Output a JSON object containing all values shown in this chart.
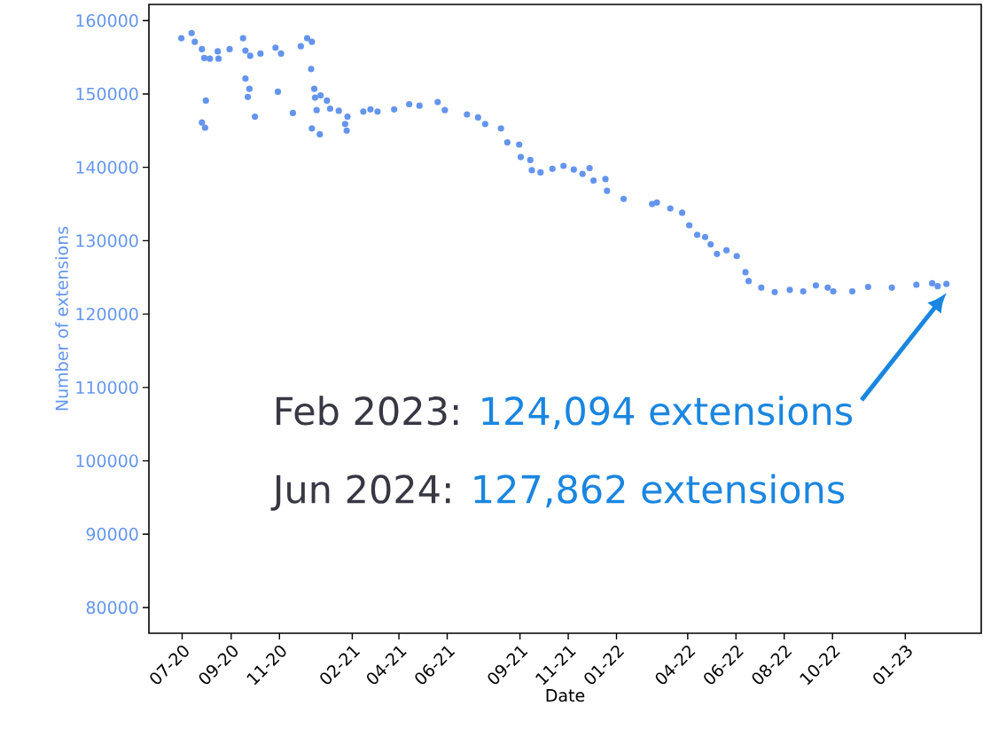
{
  "chart_data": {
    "type": "scatter",
    "xlabel": "Date",
    "ylabel": "Number of extensions",
    "x": [
      "2020-07-14",
      "2020-07-27",
      "2020-07-31",
      "2020-08-09",
      "2020-08-12",
      "2020-08-19",
      "2020-08-29",
      "2020-08-30",
      "2020-09-13",
      "2020-09-30",
      "2020-10-03",
      "2020-10-09",
      "2020-10-22",
      "2020-11-10",
      "2020-11-17",
      "2020-12-12",
      "2020-12-20",
      "2020-12-26",
      "2020-08-14",
      "2020-08-09",
      "2020-08-13",
      "2020-10-03",
      "2020-10-08",
      "2020-10-06",
      "2020-10-15",
      "2020-11-13",
      "2020-12-02",
      "2020-12-25",
      "2020-12-29",
      "2021-01-01",
      "2020-12-26",
      "2021-01-05",
      "2021-02-06",
      "2021-02-08",
      "2020-12-30",
      "2021-01-06",
      "2021-01-14",
      "2021-01-18",
      "2021-01-29",
      "2021-02-09",
      "2021-03-01",
      "2021-03-10",
      "2021-03-19",
      "2021-04-09",
      "2021-04-28",
      "2021-05-11",
      "2021-06-03",
      "2021-06-12",
      "2021-07-10",
      "2021-07-24",
      "2021-08-02",
      "2021-08-22",
      "2021-08-30",
      "2021-09-14",
      "2021-09-16",
      "2021-09-28",
      "2021-09-30",
      "2021-10-11",
      "2021-10-26",
      "2021-11-09",
      "2021-11-22",
      "2021-12-03",
      "2021-12-12",
      "2021-12-17",
      "2022-01-01",
      "2022-01-03",
      "2022-01-24",
      "2022-03-01",
      "2022-03-07",
      "2022-03-24",
      "2022-04-08",
      "2022-04-17",
      "2022-04-27",
      "2022-05-07",
      "2022-05-14",
      "2022-05-22",
      "2022-06-03",
      "2022-06-16",
      "2022-06-27",
      "2022-07-01",
      "2022-07-17",
      "2022-08-03",
      "2022-08-22",
      "2022-09-08",
      "2022-09-24",
      "2022-10-09",
      "2022-10-16",
      "2022-11-09",
      "2022-11-29",
      "2022-12-29",
      "2023-01-29",
      "2023-02-18",
      "2023-02-25",
      "2023-03-08"
    ],
    "values": [
      157600,
      158300,
      157100,
      156100,
      154900,
      154800,
      155800,
      154800,
      156100,
      157600,
      155900,
      155200,
      155500,
      156300,
      155500,
      156500,
      157600,
      157100,
      149100,
      146100,
      145400,
      152100,
      150700,
      149600,
      146900,
      150300,
      147400,
      153400,
      150700,
      147800,
      145300,
      144500,
      145900,
      145000,
      149500,
      149800,
      149100,
      148000,
      147700,
      146900,
      147600,
      147900,
      147600,
      147900,
      148600,
      148400,
      148900,
      147800,
      147200,
      146800,
      145900,
      145300,
      143400,
      143100,
      141400,
      141000,
      139600,
      139300,
      139800,
      140200,
      139700,
      139100,
      139900,
      138200,
      138400,
      136800,
      135700,
      135000,
      135200,
      134400,
      133800,
      132100,
      130800,
      130500,
      129500,
      128200,
      128700,
      127900,
      125700,
      124500,
      123600,
      123000,
      123300,
      123100,
      123900,
      123600,
      123100,
      123100,
      123700,
      123600,
      124000,
      124200,
      123800,
      124100
    ],
    "color": "#6495ed",
    "xlim": [
      "2020-06-03",
      "2023-04-21"
    ],
    "ylim": [
      76500,
      162200
    ],
    "xticks": [
      {
        "value": "2020-07-15",
        "label": "07-20"
      },
      {
        "value": "2020-09-15",
        "label": "09-20"
      },
      {
        "value": "2020-11-15",
        "label": "11-20"
      },
      {
        "value": "2021-02-15",
        "label": "02-21"
      },
      {
        "value": "2021-04-15",
        "label": "04-21"
      },
      {
        "value": "2021-06-15",
        "label": "06-21"
      },
      {
        "value": "2021-09-15",
        "label": "09-21"
      },
      {
        "value": "2021-11-15",
        "label": "11-21"
      },
      {
        "value": "2022-01-15",
        "label": "01-22"
      },
      {
        "value": "2022-04-15",
        "label": "04-22"
      },
      {
        "value": "2022-06-15",
        "label": "06-22"
      },
      {
        "value": "2022-08-15",
        "label": "08-22"
      },
      {
        "value": "2022-10-15",
        "label": "10-22"
      },
      {
        "value": "2023-01-15",
        "label": "01-23"
      }
    ],
    "yticks": [
      80000,
      90000,
      100000,
      110000,
      120000,
      130000,
      140000,
      150000,
      160000
    ],
    "annotations": [
      "Feb 2023:",
      "124,094 extensions",
      "Jun 2024:",
      "127,862 extensions"
    ]
  }
}
